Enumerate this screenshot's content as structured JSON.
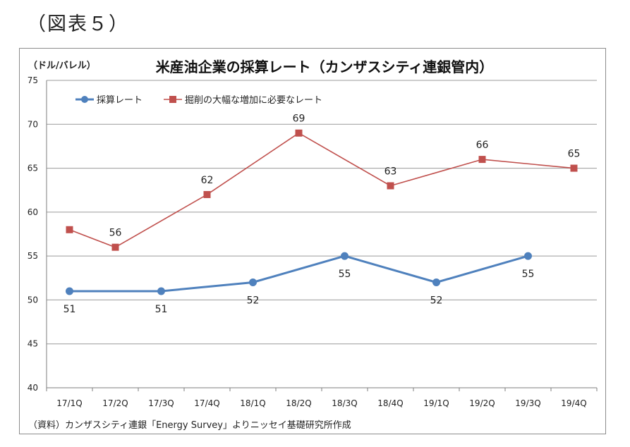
{
  "figure_label": "（図表５）",
  "chart_data": {
    "type": "line",
    "title": "米産油企業の採算レート（カンザスシティ連銀管内）",
    "ylabel": "（ドル/バレル）",
    "xlabel": "",
    "source_note": "（資料）カンザスシティ連銀「Energy Survey」よりニッセイ基礎研究所作成",
    "ylim": [
      40,
      75
    ],
    "yticks": [
      40,
      45,
      50,
      55,
      60,
      65,
      70,
      75
    ],
    "categories": [
      "17/1Q",
      "17/2Q",
      "17/3Q",
      "17/4Q",
      "18/1Q",
      "18/2Q",
      "18/3Q",
      "18/4Q",
      "19/1Q",
      "19/2Q",
      "19/3Q",
      "19/4Q"
    ],
    "grid": true,
    "legend_position": "top-left",
    "series": [
      {
        "name": "採算レート",
        "color": "#4f81bd",
        "marker": "circle",
        "values": [
          51,
          null,
          51,
          null,
          52,
          null,
          55,
          null,
          52,
          null,
          55,
          null
        ],
        "label_position": "below"
      },
      {
        "name": "掘削の大幅な増加に必要なレート",
        "color": "#c0504d",
        "marker": "square",
        "values": [
          58,
          56,
          null,
          62,
          null,
          69,
          null,
          63,
          null,
          66,
          null,
          65
        ],
        "label_position": "above",
        "labeled_values": [
          null,
          56,
          null,
          62,
          null,
          69,
          null,
          63,
          null,
          66,
          null,
          65
        ]
      }
    ]
  }
}
